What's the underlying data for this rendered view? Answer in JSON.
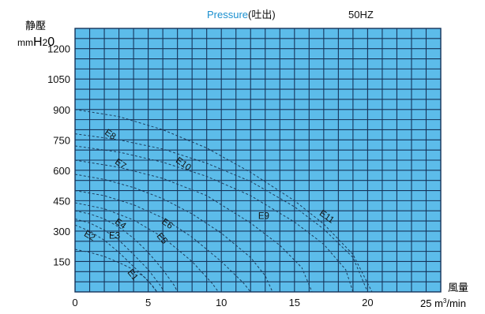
{
  "header": {
    "title_en": "Pressure",
    "title_jp": "(吐出)",
    "frequency": "50HZ"
  },
  "colors": {
    "plot_background": "#5cbcea",
    "grid": "#16345a",
    "title_accent": "#1a8fcf",
    "curve": "#1e3c5c"
  },
  "chart_data": {
    "type": "line",
    "ylabel": "静壓",
    "yunit": "mmH2O",
    "ylabel_unit_parts": [
      "mm",
      "H",
      "2",
      "0"
    ],
    "xlabel": "風量",
    "xunit_parts": [
      "25 m",
      "3",
      "/min"
    ],
    "xlim": [
      0,
      25
    ],
    "ylim": [
      0,
      1300
    ],
    "x_ticks": [
      {
        "value": 0,
        "label": "0"
      },
      {
        "value": 5,
        "label": "5"
      },
      {
        "value": 10,
        "label": "10"
      },
      {
        "value": 15,
        "label": "15"
      },
      {
        "value": 20,
        "label": "20"
      }
    ],
    "y_ticks": [
      {
        "value": 150,
        "label": "150"
      },
      {
        "value": 300,
        "label": "300"
      },
      {
        "value": 450,
        "label": "450"
      },
      {
        "value": 600,
        "label": "600"
      },
      {
        "value": 750,
        "label": "750"
      },
      {
        "value": 900,
        "label": "900"
      },
      {
        "value": 1050,
        "label": "1050"
      },
      {
        "value": 1200,
        "label": "1200"
      }
    ],
    "grid": true,
    "series": [
      {
        "name": "E1",
        "points": [
          [
            0,
            210
          ],
          [
            1,
            195
          ],
          [
            2,
            175
          ],
          [
            3,
            145
          ],
          [
            4,
            110
          ],
          [
            4.7,
            75
          ],
          [
            5.3,
            30
          ],
          [
            5.6,
            0
          ]
        ],
        "label_at": [
          3.8,
          75
        ],
        "label_rot": 50
      },
      {
        "name": "E2",
        "points": [
          [
            0,
            330
          ],
          [
            1,
            300
          ],
          [
            2,
            255
          ],
          [
            3,
            195
          ],
          [
            4,
            125
          ],
          [
            5,
            55
          ],
          [
            5.6,
            0
          ]
        ],
        "label_at": [
          0.9,
          265
        ],
        "label_rot": 30
      },
      {
        "name": "E3",
        "points": [
          [
            0,
            360
          ],
          [
            1,
            340
          ],
          [
            2,
            305
          ],
          [
            3,
            255
          ],
          [
            4,
            185
          ],
          [
            5,
            110
          ],
          [
            5.8,
            35
          ],
          [
            6.1,
            0
          ]
        ],
        "label_at": [
          2.7,
          262
        ],
        "label_rot": 0
      },
      {
        "name": "E4",
        "points": [
          [
            0,
            400
          ],
          [
            1,
            385
          ],
          [
            2,
            360
          ],
          [
            3,
            320
          ],
          [
            4,
            265
          ],
          [
            5,
            195
          ],
          [
            6,
            110
          ],
          [
            6.8,
            30
          ],
          [
            7,
            0
          ]
        ],
        "label_at": [
          3.0,
          325
        ],
        "label_rot": 35
      },
      {
        "name": "E5",
        "points": [
          [
            0,
            440
          ],
          [
            2,
            410
          ],
          [
            4,
            355
          ],
          [
            6,
            270
          ],
          [
            8,
            150
          ],
          [
            9.4,
            40
          ],
          [
            9.8,
            0
          ]
        ],
        "label_at": [
          5.8,
          255
        ],
        "label_rot": 50
      },
      {
        "name": "E6",
        "points": [
          [
            0,
            500
          ],
          [
            2,
            475
          ],
          [
            4,
            430
          ],
          [
            6,
            365
          ],
          [
            8,
            270
          ],
          [
            10,
            150
          ],
          [
            11.5,
            45
          ],
          [
            12,
            0
          ]
        ],
        "label_at": [
          6.2,
          325
        ],
        "label_rot": 35
      },
      {
        "name": "E7",
        "points": [
          [
            0,
            580
          ],
          [
            2,
            555
          ],
          [
            4,
            515
          ],
          [
            6,
            460
          ],
          [
            8,
            385
          ],
          [
            10,
            290
          ],
          [
            12,
            170
          ],
          [
            13,
            80
          ],
          [
            13.5,
            0
          ]
        ],
        "label_at": [
          3.0,
          620
        ],
        "label_rot": 35
      },
      {
        "name": "E8",
        "points": [
          [
            0,
            650
          ],
          [
            3,
            615
          ],
          [
            6,
            560
          ],
          [
            9,
            475
          ],
          [
            12,
            340
          ],
          [
            14,
            230
          ],
          [
            15.5,
            120
          ],
          [
            16.2,
            0
          ]
        ],
        "label_at": [
          2.3,
          765
        ],
        "label_rot": 35
      },
      {
        "name": "E9",
        "points": [
          [
            0,
            720
          ],
          [
            3,
            690
          ],
          [
            6,
            640
          ],
          [
            9,
            570
          ],
          [
            12,
            475
          ],
          [
            15,
            345
          ],
          [
            17,
            235
          ],
          [
            18.5,
            110
          ],
          [
            19,
            0
          ]
        ],
        "label_at": [
          12.9,
          360
        ],
        "label_rot": 0
      },
      {
        "name": "E10",
        "points": [
          [
            0,
            780
          ],
          [
            3,
            750
          ],
          [
            6,
            705
          ],
          [
            9,
            635
          ],
          [
            12,
            545
          ],
          [
            15,
            420
          ],
          [
            17,
            310
          ],
          [
            19,
            170
          ],
          [
            20,
            0
          ]
        ],
        "label_at": [
          7.3,
          620
        ],
        "label_rot": 35
      },
      {
        "name": "E11",
        "points": [
          [
            0,
            900
          ],
          [
            3,
            865
          ],
          [
            6,
            800
          ],
          [
            9,
            710
          ],
          [
            12,
            590
          ],
          [
            15,
            450
          ],
          [
            17,
            335
          ],
          [
            19,
            185
          ],
          [
            20.3,
            0
          ]
        ],
        "label_at": [
          17.1,
          360
        ],
        "label_rot": 35
      }
    ]
  }
}
